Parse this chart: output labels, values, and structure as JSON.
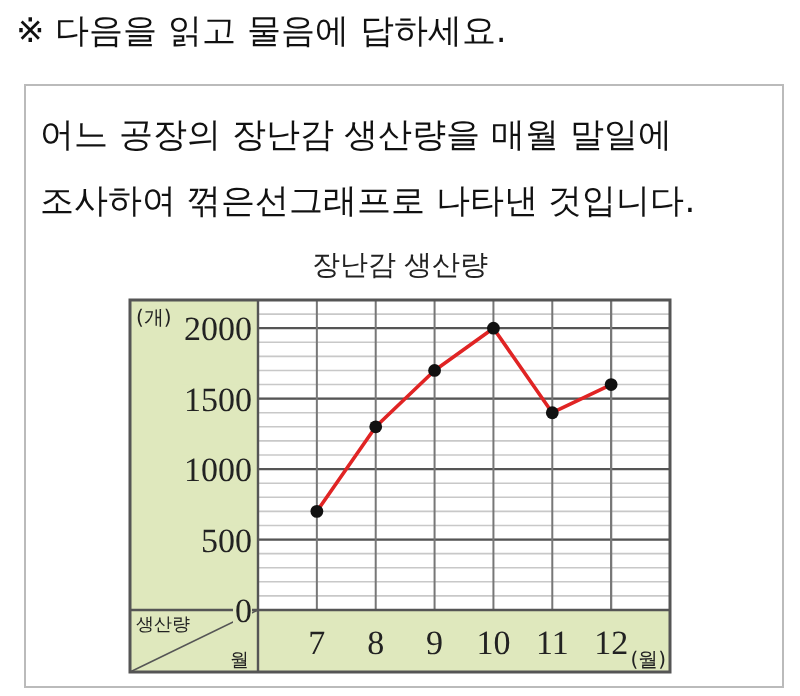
{
  "chart_data": {
    "type": "line",
    "title": "장난감 생산량",
    "xlabel": "(월)",
    "ylabel": "(개)",
    "annotations": [
      "※ 다음을 읽고 물음에 답하세요.",
      "어느 공장의 장난감 생산량을 매월 말일에 조사하여 꺾은선그래프로 나타낸 것입니다.",
      "생산량",
      "월"
    ],
    "categories": [
      "7",
      "8",
      "9",
      "10",
      "11",
      "12"
    ],
    "series": [
      {
        "color": "#e02424",
        "values": [
          700,
          1300,
          1700,
          2000,
          1400,
          1600
        ]
      }
    ],
    "ylim": [
      0,
      2200
    ],
    "yticks": [
      0,
      500,
      1000,
      1500,
      2000
    ],
    "grid": true,
    "marker": "circle"
  }
}
